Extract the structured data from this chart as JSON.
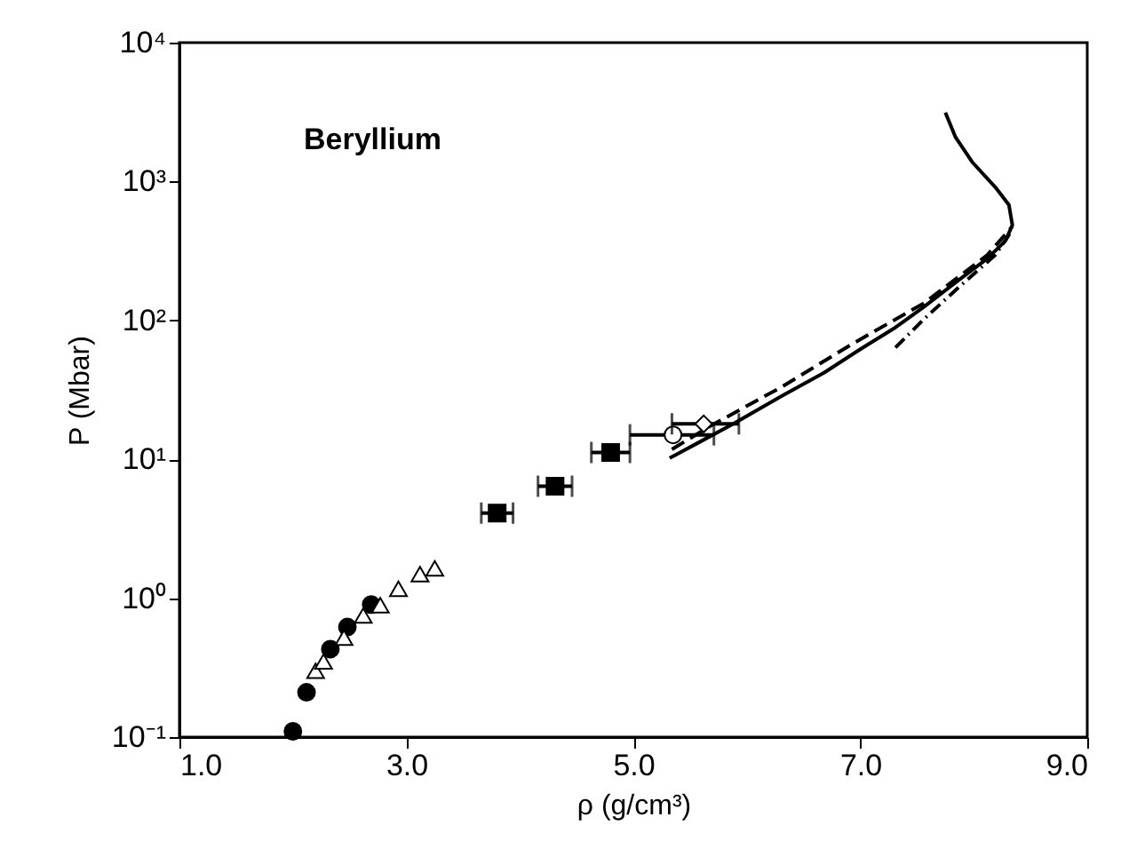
{
  "chart_data": {
    "type": "scatter",
    "xlabel": "ρ (g/cm³)",
    "ylabel": "P (Mbar)",
    "annotations": [
      "Beryllium"
    ],
    "xlim": [
      1,
      9
    ],
    "xticks": [
      {
        "value": 1,
        "label": "1.0"
      },
      {
        "value": 3,
        "label": "3.0"
      },
      {
        "value": 5,
        "label": "5.0"
      },
      {
        "value": 7,
        "label": "7.0"
      },
      {
        "value": 9,
        "label": "9.0"
      }
    ],
    "ylim": [
      0.1,
      10000
    ],
    "log": true,
    "yticks": [
      {
        "value": 0.1,
        "label": "10⁻¹"
      },
      {
        "value": 1,
        "label": "10⁰"
      },
      {
        "value": 10,
        "label": "10¹"
      },
      {
        "value": 100,
        "label": "10²"
      },
      {
        "value": 1000,
        "label": "10³"
      },
      {
        "value": 10000,
        "label": "10⁴"
      }
    ],
    "grid": false,
    "series": [
      {
        "marker": "circle",
        "color": "#000000",
        "x": [
          2.0,
          2.12,
          2.33,
          2.48,
          2.69
        ],
        "values": [
          0.11,
          0.21,
          0.43,
          0.62,
          0.9
        ]
      },
      {
        "marker": "triangle",
        "color": "#ffffff",
        "x": [
          2.2,
          2.27,
          2.45,
          2.62,
          2.77,
          2.93,
          3.12,
          3.25
        ],
        "values": [
          0.3,
          0.35,
          0.52,
          0.75,
          0.89,
          1.17,
          1.49,
          1.64
        ]
      },
      {
        "marker": "square",
        "color": "#000000",
        "x": [
          3.8,
          4.31,
          4.8
        ],
        "values": [
          4.1,
          6.4,
          11.2
        ],
        "xerrors": [
          0.14,
          0.15,
          0.17
        ]
      },
      {
        "marker": "circle",
        "color": "#ffffff",
        "x": [
          5.35
        ],
        "values": [
          15
        ],
        "xerrors": [
          [
            4.97,
            5.71
          ]
        ]
      },
      {
        "marker": "diamond",
        "color": "#ffffff",
        "x": [
          5.62
        ],
        "values": [
          18
        ],
        "xerrors": [
          [
            5.34,
            5.93
          ]
        ]
      },
      {
        "type": "line",
        "line_style": "solid",
        "color": "#000000",
        "x": [
          5.32,
          5.56,
          5.87,
          6.31,
          6.68,
          7.0,
          7.31,
          7.56,
          7.87,
          8.12,
          8.28,
          8.34,
          8.31,
          8.19,
          7.99,
          7.84,
          7.75
        ],
        "values": [
          10.2,
          13,
          17.8,
          28.6,
          42,
          62,
          89,
          125,
          196,
          279,
          375,
          486,
          678,
          910,
          1370,
          2080,
          3140
        ]
      },
      {
        "type": "line",
        "line_style": "dashed",
        "color": "#000000",
        "x": [
          5.34,
          5.68,
          6.31,
          6.93,
          7.56,
          8.12,
          8.34
        ],
        "values": [
          11.8,
          17.4,
          33.3,
          67.8,
          133,
          296,
          475
        ]
      },
      {
        "type": "line",
        "line_style": "dotted",
        "color": "#000000",
        "x": [
          7.31,
          7.56,
          7.87,
          8.19,
          8.34
        ],
        "values": [
          63.8,
          102,
          174,
          296,
          448
        ]
      }
    ]
  }
}
